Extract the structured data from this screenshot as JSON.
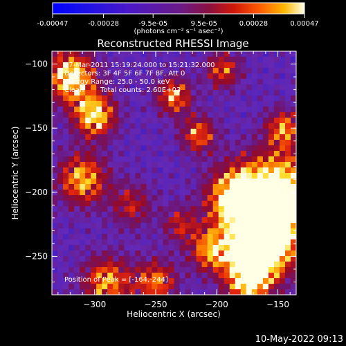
{
  "colorbar": {
    "tick_labels": [
      "-0.00047",
      "-0.00028",
      "-9.5e-05",
      "9.5e-05",
      "0.00028",
      "0.00047"
    ],
    "unit_label": "(photons cm⁻² s⁻¹ asec⁻²)",
    "range": [
      -0.00047,
      0.00047
    ]
  },
  "chart_data": {
    "type": "heatmap",
    "title": "Reconstructed RHESSI Image",
    "xlabel": "Heliocentric X (arcsec)",
    "ylabel": "Heliocentric Y (arcsec)",
    "xlim": [
      -335,
      -135
    ],
    "ylim": [
      -280,
      -90
    ],
    "xticks": [
      -300,
      -250,
      -200,
      -150
    ],
    "yticks": [
      -100,
      -150,
      -200,
      -250
    ],
    "peak_position": [
      -164,
      -244
    ]
  },
  "annotations": {
    "time_range": "27-Mar-2011 15:19:24.000 to 15:21:32.000",
    "detectors": "Detectors: 3F 4F 5F 6F 7F 8F, Att 0",
    "energy_range": "Energy Range: 25.0 - 50.0 keV",
    "clean": "Clean",
    "total_counts": "Total counts: 2.60E+03",
    "peak_label": "Position of Peak = [-164,-244]"
  },
  "footer": {
    "timestamp": "10-May-2022 09:13"
  }
}
